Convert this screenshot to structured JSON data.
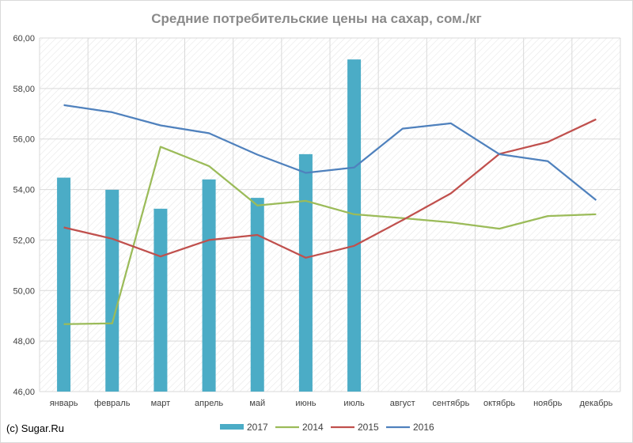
{
  "chart_data": {
    "type": "bar+line",
    "title": "Средние потребительские цены на сахар, сом./кг",
    "categories": [
      "январь",
      "февраль",
      "март",
      "апрель",
      "май",
      "июнь",
      "июль",
      "август",
      "сентябрь",
      "октябрь",
      "ноябрь",
      "декабрь"
    ],
    "ylim": [
      46,
      60
    ],
    "yticks": [
      "46,00",
      "48,00",
      "50,00",
      "52,00",
      "54,00",
      "56,00",
      "58,00",
      "60,00"
    ],
    "grid": true,
    "legend_position": "bottom",
    "series": [
      {
        "name": "2017",
        "kind": "bar",
        "color": "#4bacc6",
        "values": [
          54.47,
          53.99,
          53.24,
          54.4,
          53.67,
          55.4,
          59.15,
          null,
          null,
          null,
          null,
          null
        ]
      },
      {
        "name": "2014",
        "kind": "line",
        "color": "#9bbb59",
        "values": [
          48.67,
          48.7,
          55.69,
          54.93,
          53.37,
          53.55,
          53.02,
          52.87,
          52.7,
          52.45,
          52.95,
          53.02
        ]
      },
      {
        "name": "2015",
        "kind": "line",
        "color": "#c0504d",
        "values": [
          52.5,
          52.05,
          51.35,
          52.0,
          52.2,
          51.3,
          51.77,
          52.79,
          53.85,
          55.41,
          55.88,
          56.78
        ]
      },
      {
        "name": "2016",
        "kind": "line",
        "color": "#4f81bd",
        "values": [
          57.34,
          57.06,
          56.54,
          56.23,
          55.38,
          54.66,
          54.87,
          56.41,
          56.62,
          55.4,
          55.12,
          53.58
        ]
      }
    ],
    "source": "(c) Sugar.Ru"
  }
}
